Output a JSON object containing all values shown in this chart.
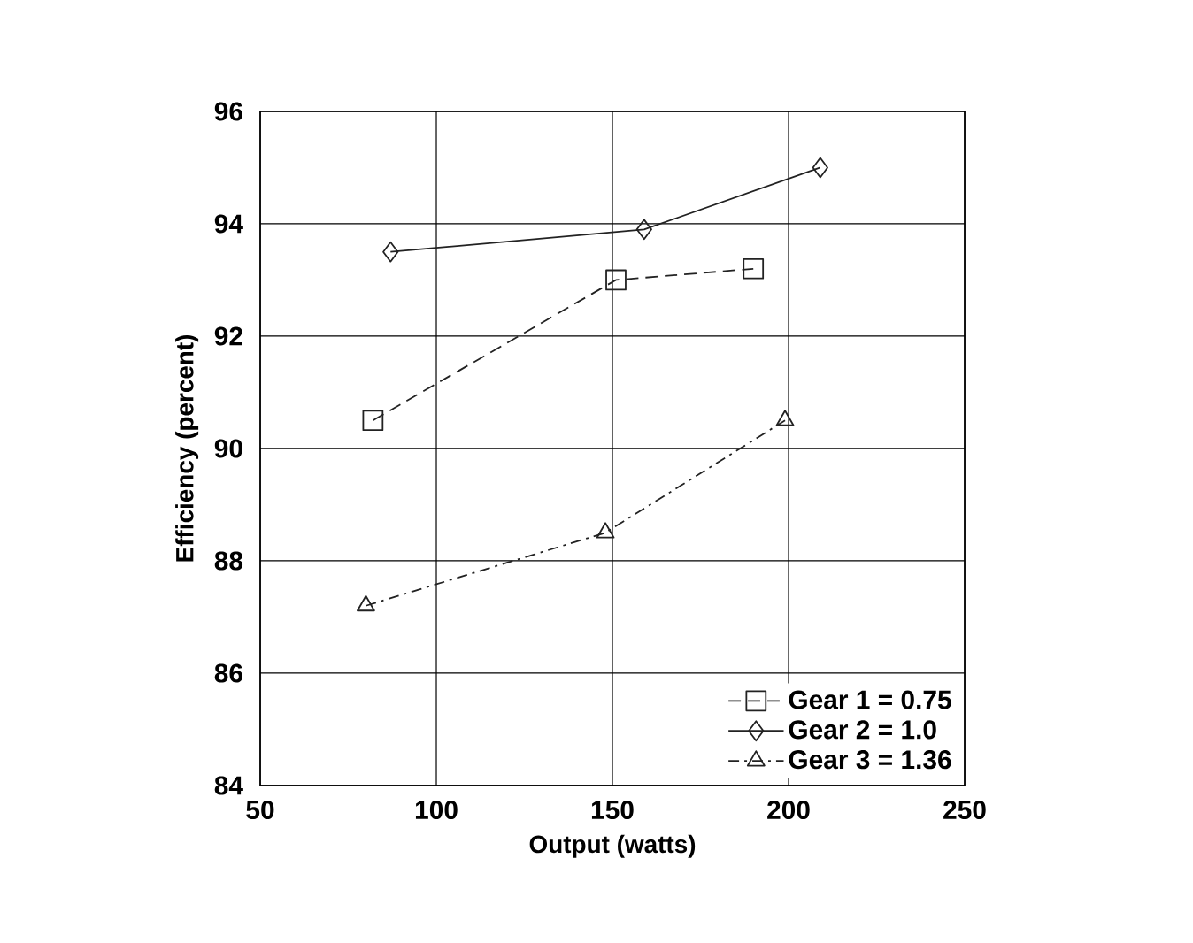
{
  "chart_data": {
    "type": "line",
    "xlabel": "Output (watts)",
    "ylabel": "Efficiency (percent)",
    "xlim": [
      50,
      250
    ],
    "xticks": [
      50,
      100,
      150,
      200,
      250
    ],
    "ylim": [
      84,
      96
    ],
    "yticks": [
      84,
      86,
      88,
      90,
      92,
      94,
      96
    ],
    "grid": true,
    "legend": "bottom right",
    "series": [
      {
        "name": "Gear 1 = 0.75",
        "color": "#222222",
        "marker": "square",
        "line_style": "dashed",
        "x": [
          82,
          151,
          190
        ],
        "values": [
          90.5,
          93.0,
          93.2
        ]
      },
      {
        "name": "Gear 2 = 1.0",
        "color": "#222222",
        "marker": "diamond",
        "line_style": "solid",
        "x": [
          87,
          159,
          209
        ],
        "values": [
          93.5,
          93.9,
          95.0
        ]
      },
      {
        "name": "Gear 3 = 1.36",
        "color": "#222222",
        "marker": "triangle",
        "line_style": "dashdotted",
        "x": [
          80,
          148,
          199
        ],
        "values": [
          87.2,
          88.5,
          90.5
        ]
      }
    ]
  }
}
